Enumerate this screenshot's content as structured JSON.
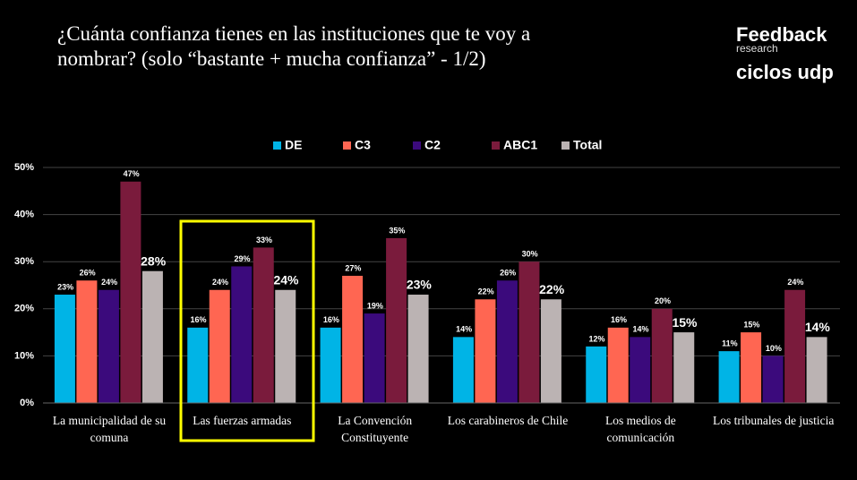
{
  "header": {
    "title": "¿Cuánta confianza tienes en las instituciones que te voy a nombrar? (solo “bastante + mucha confianza” - 1/2)",
    "brand": "Feedback",
    "brand_sub": "research",
    "brand2": "ciclos udp"
  },
  "chart_data": {
    "type": "bar",
    "categories": [
      "La municipalidad de su comuna",
      "Las fuerzas armadas",
      "La Convención Constituyente",
      "Los carabineros de Chile",
      "Los medios de comunicación",
      "Los tribunales de justicia"
    ],
    "series": [
      {
        "name": "DE",
        "color": "#00b4e6",
        "values": [
          23,
          16,
          16,
          14,
          12,
          11
        ],
        "value_labels": [
          "23%",
          "16%",
          "16%",
          "14%",
          "12%",
          "11%"
        ]
      },
      {
        "name": "C3",
        "color": "#ff6652",
        "values": [
          26,
          24,
          27,
          22,
          16,
          15
        ],
        "value_labels": [
          "26%",
          "24%",
          "27%",
          "22%",
          "16%",
          "15%"
        ]
      },
      {
        "name": "C2",
        "color": "#3b0a7c",
        "values": [
          24,
          29,
          19,
          26,
          14,
          10
        ],
        "value_labels": [
          "24%",
          "29%",
          "19%",
          "26%",
          "14%",
          "10%"
        ]
      },
      {
        "name": "ABC1",
        "color": "#7a1b3c",
        "values": [
          47,
          33,
          35,
          30,
          20,
          24
        ],
        "value_labels": [
          "47%",
          "33%",
          "35%",
          "30%",
          "20%",
          "24%"
        ]
      },
      {
        "name": "Total",
        "color": "#bbb3b3",
        "values": [
          28,
          24,
          23,
          22,
          15,
          14
        ],
        "value_labels": [
          "28%",
          "24%",
          "23%",
          "22%",
          "15%",
          "14%"
        ]
      }
    ],
    "ylim": [
      0,
      50
    ],
    "yticks": [
      {
        "value": 0,
        "label": "0%"
      },
      {
        "value": 10,
        "label": "10%"
      },
      {
        "value": 20,
        "label": "20%"
      },
      {
        "value": 30,
        "label": "30%"
      },
      {
        "value": 40,
        "label": "40%"
      },
      {
        "value": 50,
        "label": "50%"
      }
    ],
    "grid": true,
    "legend": "top"
  }
}
